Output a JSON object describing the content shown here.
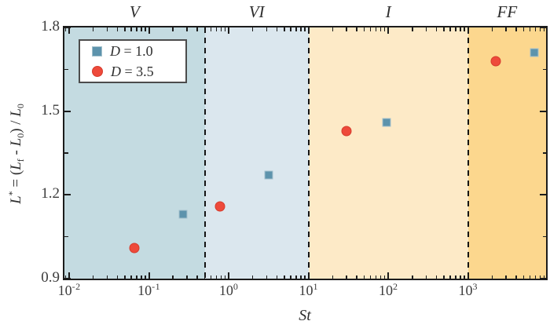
{
  "chart_data": {
    "type": "scatter",
    "title": "",
    "xlabel": "St",
    "ylabel": "L* = (Lf - L0) / L0",
    "ylabel_parts": [
      {
        "t": "L",
        "s": "i"
      },
      {
        "t": "*",
        "s": "sup"
      },
      {
        "t": " = (",
        "s": "n"
      },
      {
        "t": "L",
        "s": "i"
      },
      {
        "t": "f",
        "s": "sub"
      },
      {
        "t": " - ",
        "s": "n"
      },
      {
        "t": "L",
        "s": "i"
      },
      {
        "t": "0",
        "s": "sub"
      },
      {
        "t": ") / ",
        "s": "n"
      },
      {
        "t": "L",
        "s": "i"
      },
      {
        "t": "0",
        "s": "sub"
      }
    ],
    "x_scale": "log",
    "xlim": [
      0.0087,
      9500
    ],
    "ylim": [
      0.9,
      1.8
    ],
    "x_tick_exponents": [
      -2,
      -1,
      0,
      1,
      2,
      3
    ],
    "y_major_ticks": [
      0.9,
      1.2,
      1.5,
      1.8
    ],
    "y_minor_ticks": [
      1.05,
      1.35,
      1.65
    ],
    "grid": false,
    "regions": [
      {
        "label": "V",
        "from": 0.0087,
        "to": 0.5,
        "color": "#c4dbe1"
      },
      {
        "label": "VI",
        "from": 0.5,
        "to": 10,
        "color": "#dbe7ee"
      },
      {
        "label": "I",
        "from": 10,
        "to": 1000,
        "color": "#fdeac7"
      },
      {
        "label": "FF",
        "from": 1000,
        "to": 9500,
        "color": "#fcd78e"
      }
    ],
    "boundaries": [
      0.5,
      10,
      1000
    ],
    "series": [
      {
        "name": "D = 1.0",
        "var": "D",
        "rest": " = 1.0",
        "marker": "square",
        "color": "#5d93ac",
        "edge": "#a5c2cd",
        "points": [
          [
            0.27,
            1.13
          ],
          [
            3.2,
            1.27
          ],
          [
            95,
            1.46
          ],
          [
            6800,
            1.71
          ]
        ]
      },
      {
        "name": "D = 3.5",
        "var": "D",
        "rest": " = 3.5",
        "marker": "circle",
        "color": "#ee4a3b",
        "edge": "#d63b2c",
        "points": [
          [
            0.066,
            1.01
          ],
          [
            0.78,
            1.16
          ],
          [
            30,
            1.43
          ],
          [
            2200,
            1.68
          ]
        ]
      }
    ],
    "legend": {
      "position": "top-left"
    }
  }
}
